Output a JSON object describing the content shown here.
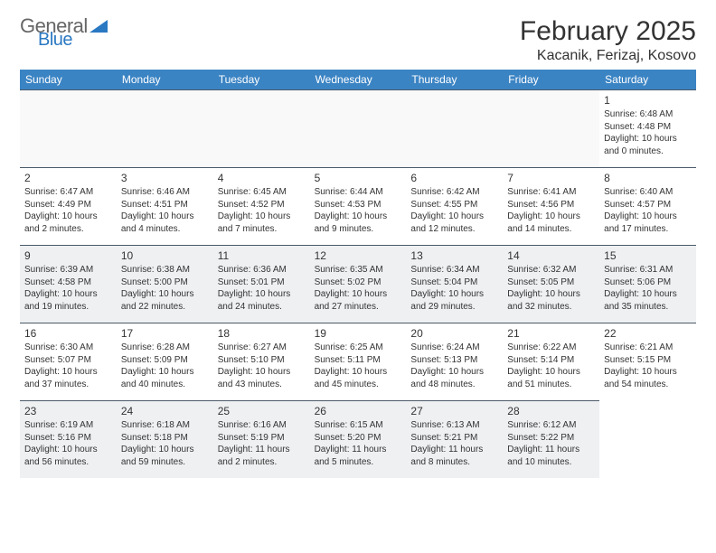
{
  "brand": {
    "line1": "General",
    "line2": "Blue"
  },
  "title": "February 2025",
  "location": "Kacanik, Ferizaj, Kosovo",
  "colors": {
    "header_bg": "#3b84c4",
    "header_text": "#ffffff",
    "cell_border": "#4b5a69",
    "shaded_bg": "#eef0f2",
    "text": "#333333",
    "brand_accent": "#2a78c2"
  },
  "weekdays": [
    "Sunday",
    "Monday",
    "Tuesday",
    "Wednesday",
    "Thursday",
    "Friday",
    "Saturday"
  ],
  "grid": {
    "leading_empty": 6,
    "days": [
      {
        "n": "1",
        "sunrise": "Sunrise: 6:48 AM",
        "sunset": "Sunset: 4:48 PM",
        "d1": "Daylight: 10 hours",
        "d2": "and 0 minutes."
      },
      {
        "n": "2",
        "sunrise": "Sunrise: 6:47 AM",
        "sunset": "Sunset: 4:49 PM",
        "d1": "Daylight: 10 hours",
        "d2": "and 2 minutes."
      },
      {
        "n": "3",
        "sunrise": "Sunrise: 6:46 AM",
        "sunset": "Sunset: 4:51 PM",
        "d1": "Daylight: 10 hours",
        "d2": "and 4 minutes."
      },
      {
        "n": "4",
        "sunrise": "Sunrise: 6:45 AM",
        "sunset": "Sunset: 4:52 PM",
        "d1": "Daylight: 10 hours",
        "d2": "and 7 minutes."
      },
      {
        "n": "5",
        "sunrise": "Sunrise: 6:44 AM",
        "sunset": "Sunset: 4:53 PM",
        "d1": "Daylight: 10 hours",
        "d2": "and 9 minutes."
      },
      {
        "n": "6",
        "sunrise": "Sunrise: 6:42 AM",
        "sunset": "Sunset: 4:55 PM",
        "d1": "Daylight: 10 hours",
        "d2": "and 12 minutes."
      },
      {
        "n": "7",
        "sunrise": "Sunrise: 6:41 AM",
        "sunset": "Sunset: 4:56 PM",
        "d1": "Daylight: 10 hours",
        "d2": "and 14 minutes."
      },
      {
        "n": "8",
        "sunrise": "Sunrise: 6:40 AM",
        "sunset": "Sunset: 4:57 PM",
        "d1": "Daylight: 10 hours",
        "d2": "and 17 minutes."
      },
      {
        "n": "9",
        "sunrise": "Sunrise: 6:39 AM",
        "sunset": "Sunset: 4:58 PM",
        "d1": "Daylight: 10 hours",
        "d2": "and 19 minutes."
      },
      {
        "n": "10",
        "sunrise": "Sunrise: 6:38 AM",
        "sunset": "Sunset: 5:00 PM",
        "d1": "Daylight: 10 hours",
        "d2": "and 22 minutes."
      },
      {
        "n": "11",
        "sunrise": "Sunrise: 6:36 AM",
        "sunset": "Sunset: 5:01 PM",
        "d1": "Daylight: 10 hours",
        "d2": "and 24 minutes."
      },
      {
        "n": "12",
        "sunrise": "Sunrise: 6:35 AM",
        "sunset": "Sunset: 5:02 PM",
        "d1": "Daylight: 10 hours",
        "d2": "and 27 minutes."
      },
      {
        "n": "13",
        "sunrise": "Sunrise: 6:34 AM",
        "sunset": "Sunset: 5:04 PM",
        "d1": "Daylight: 10 hours",
        "d2": "and 29 minutes."
      },
      {
        "n": "14",
        "sunrise": "Sunrise: 6:32 AM",
        "sunset": "Sunset: 5:05 PM",
        "d1": "Daylight: 10 hours",
        "d2": "and 32 minutes."
      },
      {
        "n": "15",
        "sunrise": "Sunrise: 6:31 AM",
        "sunset": "Sunset: 5:06 PM",
        "d1": "Daylight: 10 hours",
        "d2": "and 35 minutes."
      },
      {
        "n": "16",
        "sunrise": "Sunrise: 6:30 AM",
        "sunset": "Sunset: 5:07 PM",
        "d1": "Daylight: 10 hours",
        "d2": "and 37 minutes."
      },
      {
        "n": "17",
        "sunrise": "Sunrise: 6:28 AM",
        "sunset": "Sunset: 5:09 PM",
        "d1": "Daylight: 10 hours",
        "d2": "and 40 minutes."
      },
      {
        "n": "18",
        "sunrise": "Sunrise: 6:27 AM",
        "sunset": "Sunset: 5:10 PM",
        "d1": "Daylight: 10 hours",
        "d2": "and 43 minutes."
      },
      {
        "n": "19",
        "sunrise": "Sunrise: 6:25 AM",
        "sunset": "Sunset: 5:11 PM",
        "d1": "Daylight: 10 hours",
        "d2": "and 45 minutes."
      },
      {
        "n": "20",
        "sunrise": "Sunrise: 6:24 AM",
        "sunset": "Sunset: 5:13 PM",
        "d1": "Daylight: 10 hours",
        "d2": "and 48 minutes."
      },
      {
        "n": "21",
        "sunrise": "Sunrise: 6:22 AM",
        "sunset": "Sunset: 5:14 PM",
        "d1": "Daylight: 10 hours",
        "d2": "and 51 minutes."
      },
      {
        "n": "22",
        "sunrise": "Sunrise: 6:21 AM",
        "sunset": "Sunset: 5:15 PM",
        "d1": "Daylight: 10 hours",
        "d2": "and 54 minutes."
      },
      {
        "n": "23",
        "sunrise": "Sunrise: 6:19 AM",
        "sunset": "Sunset: 5:16 PM",
        "d1": "Daylight: 10 hours",
        "d2": "and 56 minutes."
      },
      {
        "n": "24",
        "sunrise": "Sunrise: 6:18 AM",
        "sunset": "Sunset: 5:18 PM",
        "d1": "Daylight: 10 hours",
        "d2": "and 59 minutes."
      },
      {
        "n": "25",
        "sunrise": "Sunrise: 6:16 AM",
        "sunset": "Sunset: 5:19 PM",
        "d1": "Daylight: 11 hours",
        "d2": "and 2 minutes."
      },
      {
        "n": "26",
        "sunrise": "Sunrise: 6:15 AM",
        "sunset": "Sunset: 5:20 PM",
        "d1": "Daylight: 11 hours",
        "d2": "and 5 minutes."
      },
      {
        "n": "27",
        "sunrise": "Sunrise: 6:13 AM",
        "sunset": "Sunset: 5:21 PM",
        "d1": "Daylight: 11 hours",
        "d2": "and 8 minutes."
      },
      {
        "n": "28",
        "sunrise": "Sunrise: 6:12 AM",
        "sunset": "Sunset: 5:22 PM",
        "d1": "Daylight: 11 hours",
        "d2": "and 10 minutes."
      }
    ],
    "shaded_rows": [
      2,
      4
    ]
  }
}
